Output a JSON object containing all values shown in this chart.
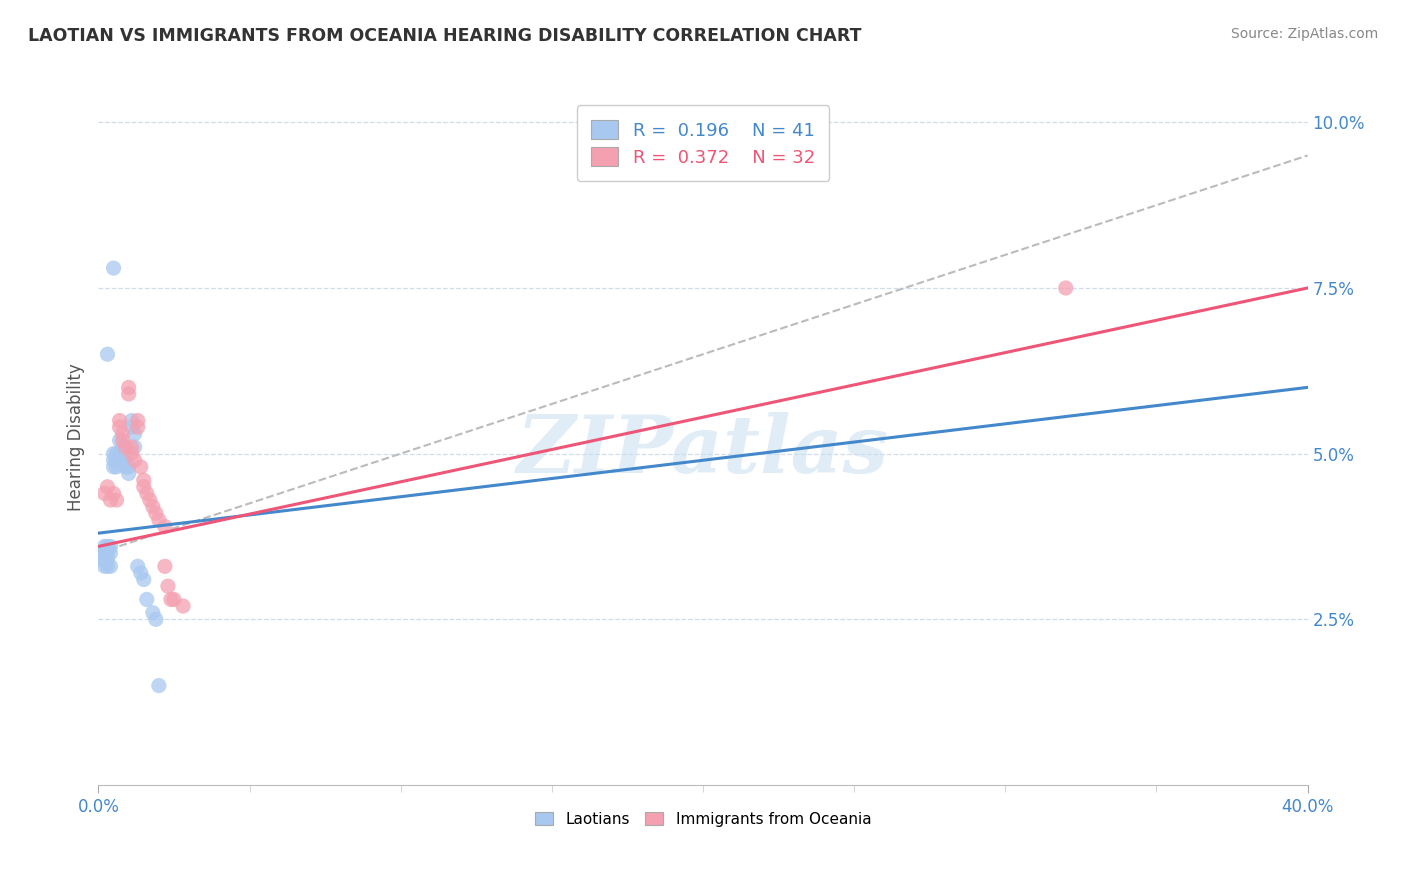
{
  "title": "LAOTIAN VS IMMIGRANTS FROM OCEANIA HEARING DISABILITY CORRELATION CHART",
  "source": "Source: ZipAtlas.com",
  "ylabel": "Hearing Disability",
  "xlim": [
    0.0,
    0.4
  ],
  "ylim": [
    0.0,
    0.105
  ],
  "yticks": [
    0.025,
    0.05,
    0.075,
    0.1
  ],
  "ytick_labels": [
    "2.5%",
    "5.0%",
    "7.5%",
    "10.0%"
  ],
  "r_laotian": 0.196,
  "n_laotian": 41,
  "r_oceania": 0.372,
  "n_oceania": 32,
  "laotian_color": "#a8c8f0",
  "oceania_color": "#f4a0b0",
  "laotian_line_color": "#4488cc",
  "oceania_line_color": "#ee5577",
  "laotian_scatter": [
    [
      0.001,
      0.035
    ],
    [
      0.001,
      0.034
    ],
    [
      0.002,
      0.036
    ],
    [
      0.002,
      0.035
    ],
    [
      0.002,
      0.034
    ],
    [
      0.002,
      0.033
    ],
    [
      0.003,
      0.036
    ],
    [
      0.003,
      0.035
    ],
    [
      0.003,
      0.034
    ],
    [
      0.003,
      0.033
    ],
    [
      0.004,
      0.036
    ],
    [
      0.004,
      0.035
    ],
    [
      0.004,
      0.033
    ],
    [
      0.005,
      0.05
    ],
    [
      0.005,
      0.049
    ],
    [
      0.005,
      0.048
    ],
    [
      0.006,
      0.05
    ],
    [
      0.006,
      0.049
    ],
    [
      0.006,
      0.048
    ],
    [
      0.007,
      0.052
    ],
    [
      0.007,
      0.05
    ],
    [
      0.007,
      0.049
    ],
    [
      0.008,
      0.051
    ],
    [
      0.008,
      0.05
    ],
    [
      0.009,
      0.049
    ],
    [
      0.009,
      0.048
    ],
    [
      0.01,
      0.048
    ],
    [
      0.01,
      0.047
    ],
    [
      0.011,
      0.055
    ],
    [
      0.011,
      0.054
    ],
    [
      0.012,
      0.053
    ],
    [
      0.012,
      0.051
    ],
    [
      0.013,
      0.033
    ],
    [
      0.014,
      0.032
    ],
    [
      0.015,
      0.031
    ],
    [
      0.016,
      0.028
    ],
    [
      0.018,
      0.026
    ],
    [
      0.019,
      0.025
    ],
    [
      0.003,
      0.065
    ],
    [
      0.005,
      0.078
    ],
    [
      0.02,
      0.015
    ]
  ],
  "oceania_scatter": [
    [
      0.002,
      0.044
    ],
    [
      0.003,
      0.045
    ],
    [
      0.004,
      0.043
    ],
    [
      0.005,
      0.044
    ],
    [
      0.006,
      0.043
    ],
    [
      0.007,
      0.055
    ],
    [
      0.007,
      0.054
    ],
    [
      0.008,
      0.053
    ],
    [
      0.008,
      0.052
    ],
    [
      0.009,
      0.051
    ],
    [
      0.01,
      0.06
    ],
    [
      0.01,
      0.059
    ],
    [
      0.011,
      0.051
    ],
    [
      0.011,
      0.05
    ],
    [
      0.012,
      0.049
    ],
    [
      0.013,
      0.055
    ],
    [
      0.013,
      0.054
    ],
    [
      0.014,
      0.048
    ],
    [
      0.015,
      0.046
    ],
    [
      0.015,
      0.045
    ],
    [
      0.016,
      0.044
    ],
    [
      0.017,
      0.043
    ],
    [
      0.018,
      0.042
    ],
    [
      0.019,
      0.041
    ],
    [
      0.02,
      0.04
    ],
    [
      0.022,
      0.039
    ],
    [
      0.022,
      0.033
    ],
    [
      0.023,
      0.03
    ],
    [
      0.024,
      0.028
    ],
    [
      0.025,
      0.028
    ],
    [
      0.028,
      0.027
    ],
    [
      0.32,
      0.075
    ]
  ],
  "gray_dash_line": [
    [
      0.0,
      0.035
    ],
    [
      0.4,
      0.095
    ]
  ],
  "laotian_trend_line": [
    [
      0.0,
      0.038
    ],
    [
      0.4,
      0.06
    ]
  ],
  "oceania_trend_line": [
    [
      0.0,
      0.036
    ],
    [
      0.4,
      0.075
    ]
  ]
}
